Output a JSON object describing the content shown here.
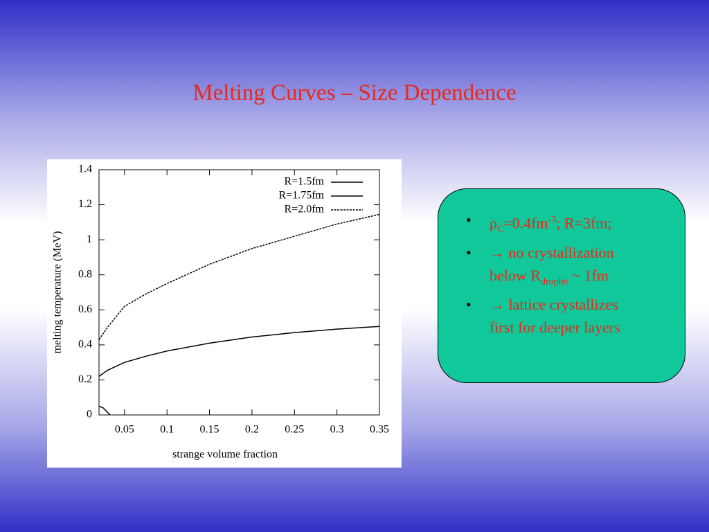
{
  "slide_title": "Melting Curves – Size Dependence",
  "bullets": [
    {
      "parts": [
        "ρ",
        "C",
        "=0.4fm",
        "-3",
        "; R=3fm;"
      ]
    },
    {
      "parts": [
        "→ no crystallization",
        "below R",
        "droplet",
        " ~ 1fm"
      ]
    },
    {
      "parts": [
        "→ lattice crystallizes",
        "first for deeper layers"
      ]
    }
  ],
  "chart_data": {
    "type": "line",
    "xlabel": "strange volume fraction",
    "ylabel": "melting temperature (MeV)",
    "xlim": [
      0.02,
      0.35
    ],
    "ylim": [
      0,
      1.4
    ],
    "xticks": [
      0.05,
      0.1,
      0.15,
      0.2,
      0.25,
      0.3,
      0.35
    ],
    "yticks": [
      0,
      0.2,
      0.4,
      0.6,
      0.8,
      1,
      1.2,
      1.4
    ],
    "legend": "upper right",
    "series": [
      {
        "name": "R=1.5fm",
        "color": "#000000",
        "style": "solid",
        "x": [
          0.02,
          0.025,
          0.03,
          0.033
        ],
        "values": [
          0.05,
          0.04,
          0.015,
          0
        ]
      },
      {
        "name": "R=1.75fm",
        "color": "#000000",
        "style": "solid",
        "x": [
          0.02,
          0.03,
          0.05,
          0.075,
          0.1,
          0.15,
          0.2,
          0.25,
          0.3,
          0.35
        ],
        "values": [
          0.22,
          0.255,
          0.3,
          0.335,
          0.365,
          0.41,
          0.445,
          0.47,
          0.49,
          0.505
        ]
      },
      {
        "name": "R=2.0fm",
        "color": "#000000",
        "style": "dashed",
        "x": [
          0.02,
          0.03,
          0.05,
          0.075,
          0.1,
          0.15,
          0.2,
          0.25,
          0.3,
          0.35
        ],
        "values": [
          0.43,
          0.5,
          0.62,
          0.69,
          0.75,
          0.86,
          0.95,
          1.02,
          1.09,
          1.145
        ]
      }
    ]
  }
}
